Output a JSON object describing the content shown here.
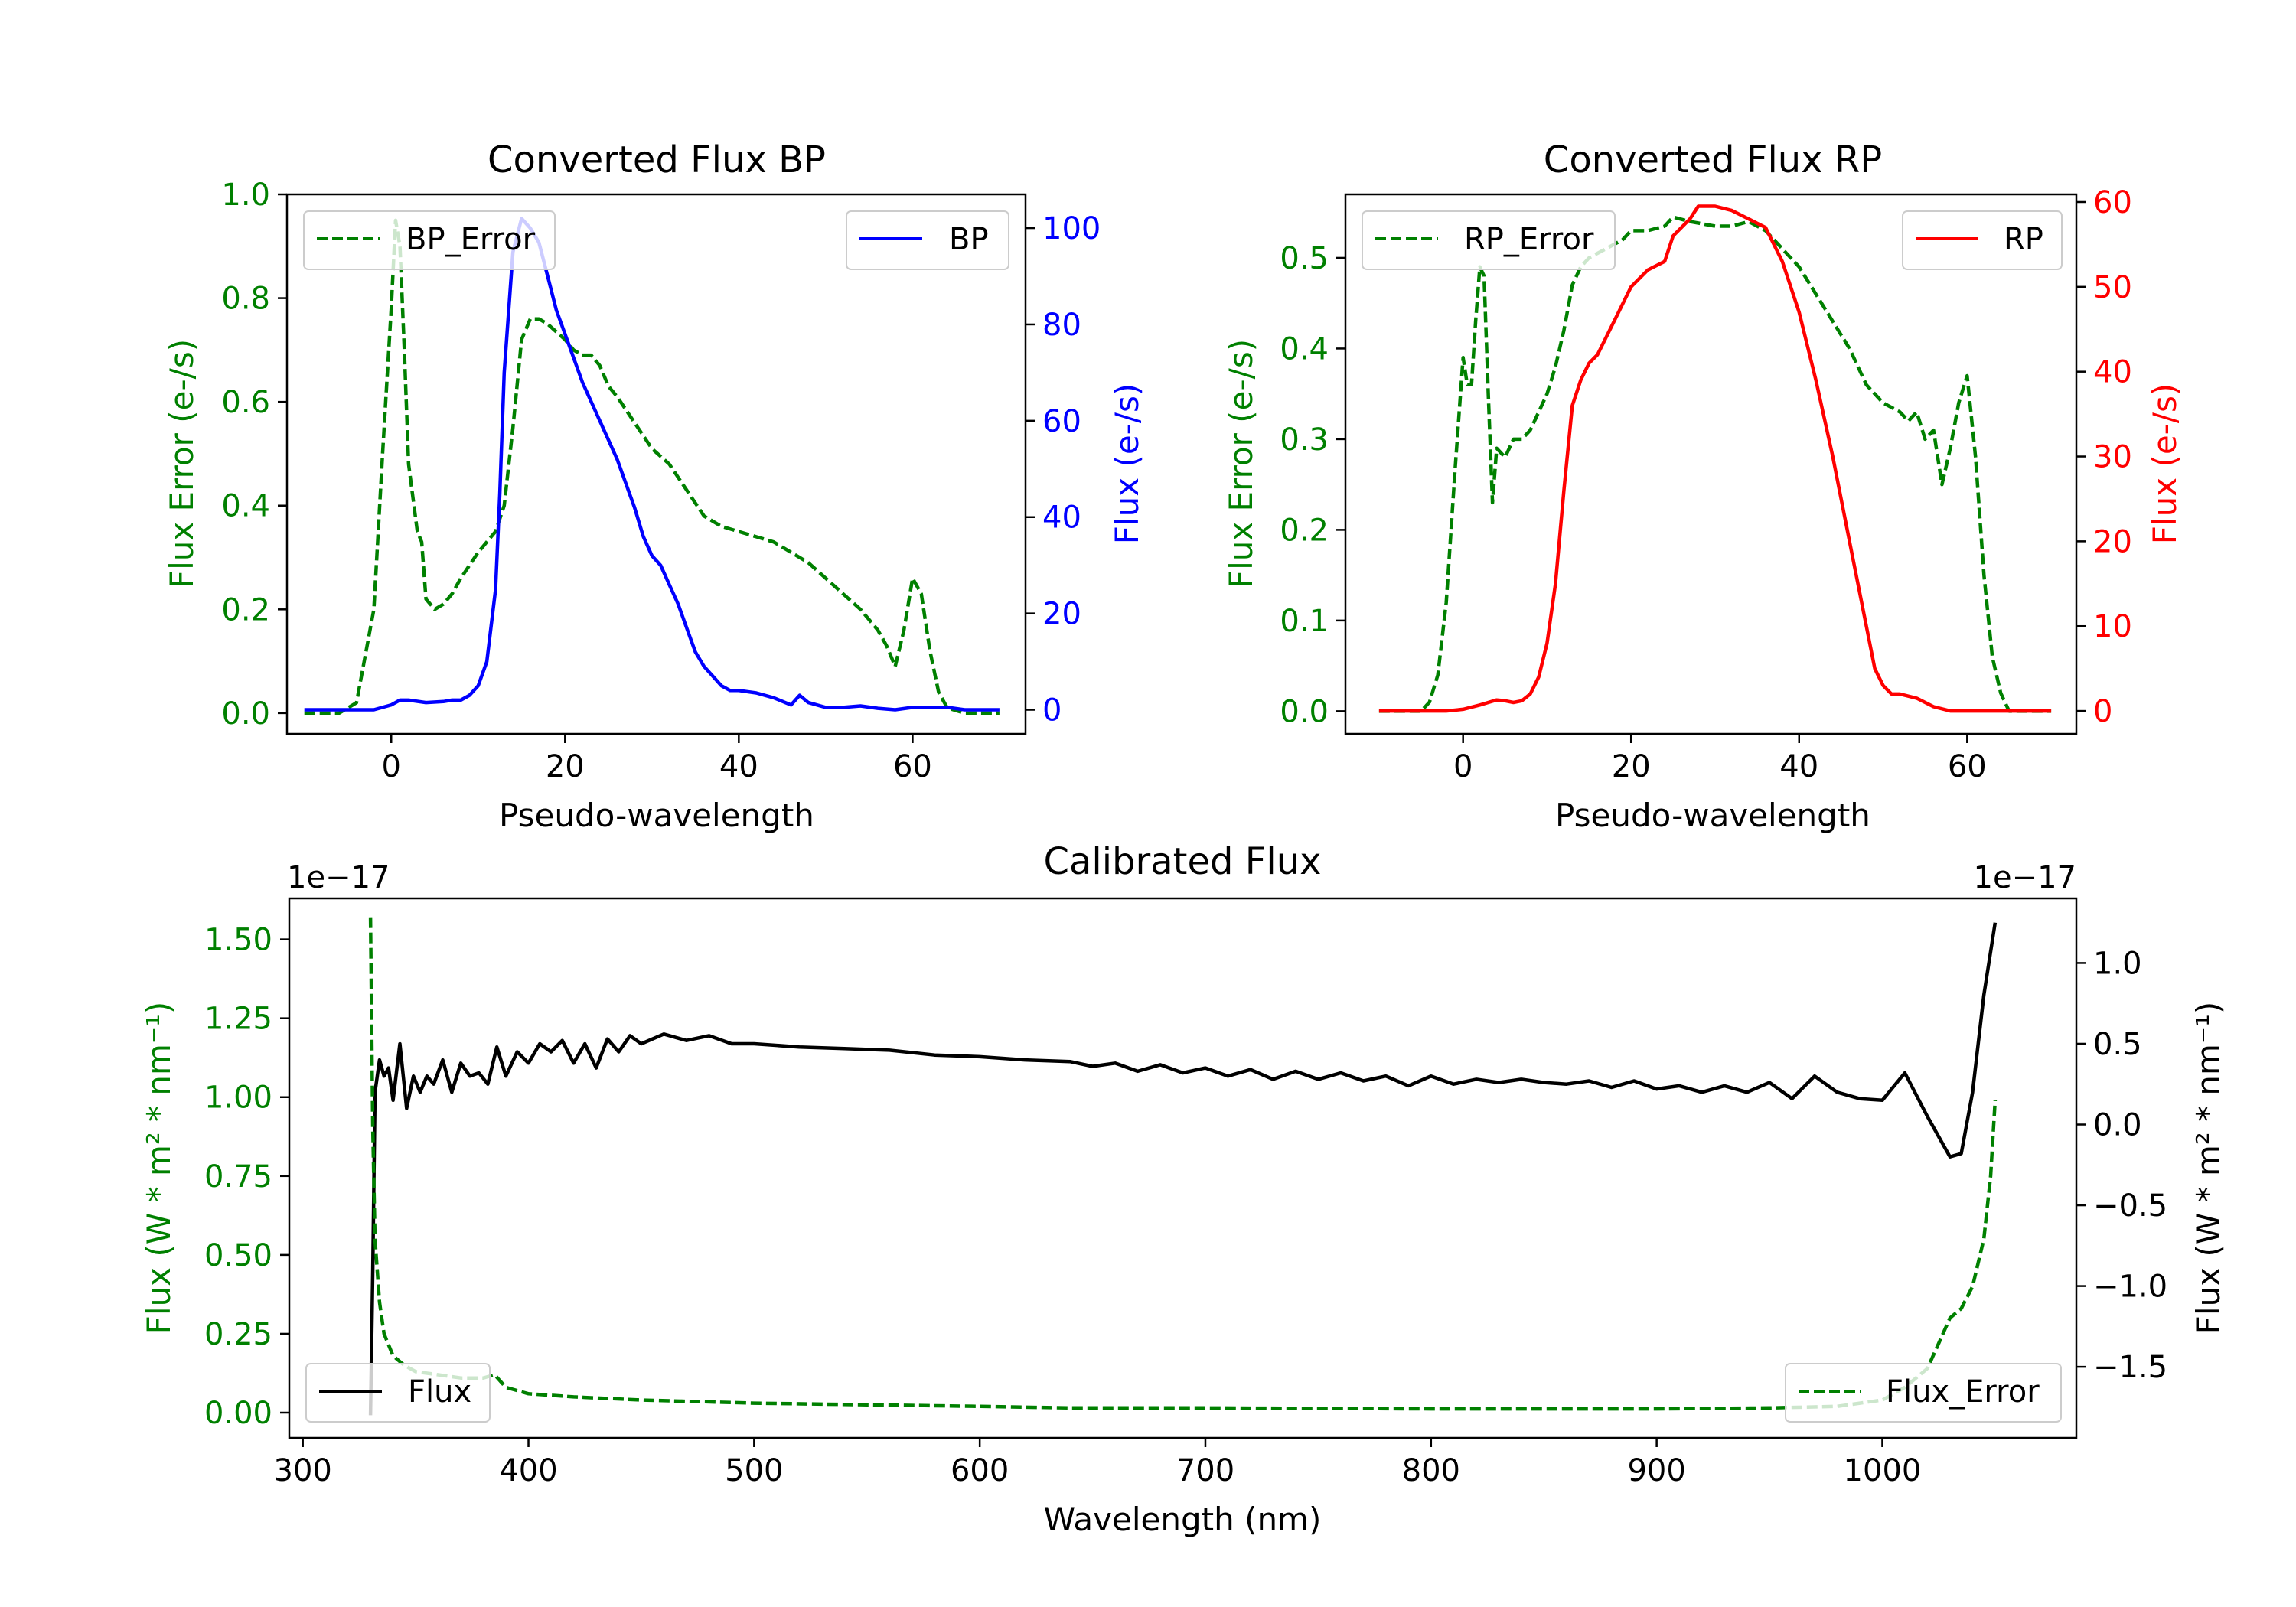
{
  "chart_data": [
    {
      "type": "line",
      "title": "Converted Flux BP",
      "xlabel": "Pseudo-wavelength",
      "ylabel": "Flux Error (e-/s)",
      "y2label": "Flux (e-/s)",
      "xlim": [
        -12,
        73
      ],
      "ylim": [
        -0.04,
        1.0
      ],
      "y2lim": [
        -5,
        107
      ],
      "xticks": [
        0,
        20,
        40,
        60
      ],
      "xtick_labels": [
        "0",
        "20",
        "40",
        "60"
      ],
      "yticks": [
        0.0,
        0.2,
        0.4,
        0.6,
        0.8,
        1.0
      ],
      "ytick_labels": [
        "0.0",
        "0.2",
        "0.4",
        "0.6",
        "0.8",
        "1.0"
      ],
      "y2ticks": [
        0,
        20,
        40,
        60,
        80,
        100
      ],
      "y2tick_labels": [
        "0",
        "20",
        "40",
        "60",
        "80",
        "100"
      ],
      "left_color": "#008000",
      "right_color": "#0000ff",
      "legend_left": "BP_Error",
      "legend_right": "BP",
      "series": [
        {
          "name": "BP_Error",
          "axis": "left",
          "color": "#008000",
          "style": "dashed",
          "x": [
            -10,
            -6,
            -4,
            -2,
            -1,
            0,
            0.5,
            1,
            1.5,
            2,
            3,
            3.5,
            4,
            5,
            6,
            7,
            8,
            10,
            12,
            13,
            14,
            15,
            16,
            17,
            18,
            20,
            21,
            22,
            23,
            24,
            25,
            26,
            28,
            30,
            32,
            34,
            36,
            38,
            40,
            42,
            44,
            46,
            48,
            50,
            52,
            54,
            56,
            57,
            58,
            59,
            60,
            61,
            62,
            63,
            64,
            66,
            70
          ],
          "y": [
            0.0,
            0.0,
            0.02,
            0.2,
            0.5,
            0.78,
            0.95,
            0.9,
            0.7,
            0.48,
            0.35,
            0.33,
            0.22,
            0.2,
            0.21,
            0.23,
            0.26,
            0.31,
            0.35,
            0.4,
            0.55,
            0.72,
            0.76,
            0.76,
            0.75,
            0.72,
            0.7,
            0.69,
            0.69,
            0.67,
            0.63,
            0.61,
            0.56,
            0.51,
            0.48,
            0.43,
            0.38,
            0.36,
            0.35,
            0.34,
            0.33,
            0.31,
            0.29,
            0.26,
            0.23,
            0.2,
            0.16,
            0.13,
            0.09,
            0.16,
            0.26,
            0.23,
            0.12,
            0.04,
            0.01,
            0.0,
            0.0
          ]
        },
        {
          "name": "BP",
          "axis": "right",
          "color": "#0000ff",
          "style": "solid",
          "x": [
            -10,
            -4,
            -2,
            0,
            1,
            2,
            4,
            6,
            7,
            8,
            9,
            10,
            11,
            12,
            12.5,
            13,
            14,
            15,
            16,
            17,
            18,
            19,
            20,
            22,
            24,
            26,
            28,
            29,
            30,
            31,
            32,
            33,
            34,
            35,
            36,
            37,
            38,
            39,
            40,
            42,
            44,
            46,
            47,
            48,
            50,
            52,
            54,
            56,
            58,
            60,
            62,
            64,
            66,
            70
          ],
          "y": [
            0,
            0,
            0,
            1,
            2,
            2,
            1.5,
            1.7,
            2,
            2,
            3,
            5,
            10,
            25,
            45,
            70,
            95,
            102,
            100,
            97,
            90,
            83,
            78,
            68,
            60,
            52,
            42,
            36,
            32,
            30,
            26,
            22,
            17,
            12,
            9,
            7,
            5,
            4,
            4,
            3.5,
            2.5,
            1,
            3,
            1.5,
            0.5,
            0.5,
            0.8,
            0.3,
            0,
            0.5,
            0.5,
            0.5,
            0,
            0
          ]
        }
      ]
    },
    {
      "type": "line",
      "title": "Converted Flux RP",
      "xlabel": "Pseudo-wavelength",
      "ylabel": "Flux Error (e-/s)",
      "y2label": "Flux (e-/s)",
      "xlim": [
        -14,
        73
      ],
      "ylim": [
        -0.025,
        0.57
      ],
      "y2lim": [
        -2.7,
        60.9
      ],
      "xticks": [
        0,
        20,
        40,
        60
      ],
      "xtick_labels": [
        "0",
        "20",
        "40",
        "60"
      ],
      "yticks": [
        0.0,
        0.1,
        0.2,
        0.3,
        0.4,
        0.5
      ],
      "ytick_labels": [
        "0.0",
        "0.1",
        "0.2",
        "0.3",
        "0.4",
        "0.5"
      ],
      "y2ticks": [
        0,
        10,
        20,
        30,
        40,
        50,
        60
      ],
      "y2tick_labels": [
        "0",
        "10",
        "20",
        "30",
        "40",
        "50",
        "60"
      ],
      "left_color": "#008000",
      "right_color": "#ff0000",
      "legend_left": "RP_Error",
      "legend_right": "RP",
      "series": [
        {
          "name": "RP_Error",
          "axis": "left",
          "color": "#008000",
          "style": "dashed",
          "x": [
            -10,
            -5,
            -4,
            -3,
            -2,
            -1,
            0,
            0.5,
            1,
            1.5,
            2,
            2.5,
            3,
            3.5,
            4,
            5,
            6,
            7,
            8,
            9,
            10,
            11,
            12,
            13,
            14,
            15,
            17,
            19,
            20,
            22,
            24,
            25,
            27,
            30,
            32,
            34,
            36,
            38,
            40,
            42,
            44,
            46,
            48,
            50,
            51,
            52,
            53,
            54,
            55,
            56,
            57,
            58,
            59,
            60,
            61,
            62,
            63,
            64,
            65,
            70
          ],
          "y": [
            0.0,
            0.0,
            0.01,
            0.04,
            0.12,
            0.26,
            0.39,
            0.36,
            0.36,
            0.43,
            0.49,
            0.48,
            0.35,
            0.23,
            0.29,
            0.28,
            0.3,
            0.3,
            0.31,
            0.33,
            0.35,
            0.38,
            0.42,
            0.47,
            0.49,
            0.5,
            0.51,
            0.52,
            0.53,
            0.53,
            0.535,
            0.545,
            0.54,
            0.535,
            0.535,
            0.54,
            0.53,
            0.51,
            0.49,
            0.46,
            0.43,
            0.4,
            0.36,
            0.34,
            0.335,
            0.33,
            0.32,
            0.33,
            0.3,
            0.31,
            0.25,
            0.29,
            0.34,
            0.37,
            0.28,
            0.15,
            0.06,
            0.02,
            0.0,
            0.0
          ]
        },
        {
          "name": "RP",
          "axis": "right",
          "color": "#ff0000",
          "style": "solid",
          "x": [
            -10,
            -4,
            -2,
            0,
            2,
            3,
            4,
            5,
            6,
            7,
            8,
            9,
            10,
            11,
            12,
            13,
            14,
            15,
            16,
            18,
            20,
            22,
            24,
            25,
            26,
            27,
            28,
            30,
            32,
            34,
            35,
            36,
            37,
            38,
            40,
            42,
            44,
            46,
            48,
            49,
            50,
            51,
            52,
            54,
            56,
            58,
            60,
            62,
            64,
            66,
            70
          ],
          "y": [
            0,
            0,
            0,
            0.2,
            0.7,
            1,
            1.3,
            1.2,
            1,
            1.2,
            2,
            4,
            8,
            15,
            26,
            36,
            39,
            41,
            42,
            46,
            50,
            52,
            53,
            56,
            57,
            58,
            59.5,
            59.5,
            59,
            58,
            57.5,
            57,
            55,
            53,
            47,
            39,
            30,
            20,
            10,
            5,
            3,
            2,
            2,
            1.5,
            0.5,
            0,
            0,
            0,
            0,
            0,
            0
          ]
        }
      ]
    },
    {
      "type": "line",
      "title": "Calibrated Flux",
      "xlabel": "Wavelength (nm)",
      "ylabel": "Flux (W * m² * nm⁻¹)",
      "y2label": "Flux (W * m² * nm⁻¹)",
      "offset_left": "1e−17",
      "offset_right": "1e−17",
      "xlim": [
        294,
        1086
      ],
      "ylim": [
        -0.08,
        1.63
      ],
      "y2lim": [
        -1.94,
        1.4
      ],
      "xticks": [
        300,
        400,
        500,
        600,
        700,
        800,
        900,
        1000
      ],
      "xtick_labels": [
        "300",
        "400",
        "500",
        "600",
        "700",
        "800",
        "900",
        "1000"
      ],
      "yticks": [
        0.0,
        0.25,
        0.5,
        0.75,
        1.0,
        1.25,
        1.5
      ],
      "ytick_labels": [
        "0.00",
        "0.25",
        "0.50",
        "0.75",
        "1.00",
        "1.25",
        "1.50"
      ],
      "y2ticks": [
        -1.5,
        -1.0,
        -0.5,
        0.0,
        0.5,
        1.0
      ],
      "y2tick_labels": [
        "−1.5",
        "−1.0",
        "−0.5",
        "0.0",
        "0.5",
        "1.0"
      ],
      "left_color": "#008000",
      "right_color": "#000000",
      "legend_left": "Flux",
      "legend_right": "Flux_Error",
      "series": [
        {
          "name": "Flux",
          "axis": "right",
          "color": "#000000",
          "style": "solid",
          "x": [
            330,
            331,
            332,
            334,
            336,
            338,
            340,
            343,
            346,
            349,
            352,
            355,
            358,
            362,
            366,
            370,
            374,
            378,
            382,
            386,
            390,
            395,
            400,
            405,
            410,
            415,
            420,
            425,
            430,
            435,
            440,
            445,
            450,
            460,
            470,
            480,
            490,
            500,
            520,
            540,
            560,
            580,
            600,
            620,
            640,
            650,
            660,
            670,
            680,
            690,
            700,
            710,
            720,
            730,
            740,
            750,
            760,
            770,
            780,
            790,
            800,
            810,
            820,
            830,
            840,
            850,
            860,
            870,
            880,
            890,
            900,
            910,
            920,
            930,
            940,
            950,
            960,
            970,
            980,
            990,
            1000,
            1010,
            1020,
            1030,
            1035,
            1040,
            1045,
            1050
          ],
          "y": [
            -1.8,
            -0.9,
            0.2,
            0.4,
            0.3,
            0.35,
            0.15,
            0.5,
            0.1,
            0.3,
            0.2,
            0.3,
            0.25,
            0.4,
            0.2,
            0.38,
            0.3,
            0.32,
            0.25,
            0.48,
            0.3,
            0.45,
            0.38,
            0.5,
            0.45,
            0.52,
            0.38,
            0.5,
            0.35,
            0.53,
            0.45,
            0.55,
            0.5,
            0.56,
            0.52,
            0.55,
            0.5,
            0.5,
            0.48,
            0.47,
            0.46,
            0.43,
            0.42,
            0.4,
            0.39,
            0.36,
            0.38,
            0.33,
            0.37,
            0.32,
            0.35,
            0.3,
            0.34,
            0.28,
            0.33,
            0.28,
            0.32,
            0.27,
            0.3,
            0.24,
            0.3,
            0.25,
            0.28,
            0.26,
            0.28,
            0.26,
            0.25,
            0.27,
            0.23,
            0.27,
            0.22,
            0.24,
            0.2,
            0.24,
            0.2,
            0.26,
            0.16,
            0.3,
            0.2,
            0.16,
            0.15,
            0.32,
            0.05,
            -0.2,
            -0.18,
            0.2,
            0.8,
            1.25
          ]
        },
        {
          "name": "Flux_Error",
          "axis": "left",
          "color": "#008000",
          "style": "dashed",
          "x": [
            330,
            331,
            332,
            334,
            336,
            340,
            345,
            350,
            360,
            370,
            380,
            385,
            390,
            400,
            420,
            450,
            500,
            550,
            600,
            640,
            700,
            800,
            900,
            950,
            980,
            1000,
            1010,
            1020,
            1025,
            1030,
            1035,
            1040,
            1045,
            1048,
            1050
          ],
          "y": [
            1.57,
            0.9,
            0.55,
            0.35,
            0.25,
            0.18,
            0.15,
            0.13,
            0.12,
            0.11,
            0.11,
            0.12,
            0.08,
            0.06,
            0.05,
            0.04,
            0.03,
            0.025,
            0.02,
            0.015,
            0.015,
            0.012,
            0.012,
            0.015,
            0.02,
            0.04,
            0.08,
            0.14,
            0.22,
            0.3,
            0.33,
            0.4,
            0.55,
            0.75,
            0.99
          ]
        }
      ]
    }
  ]
}
